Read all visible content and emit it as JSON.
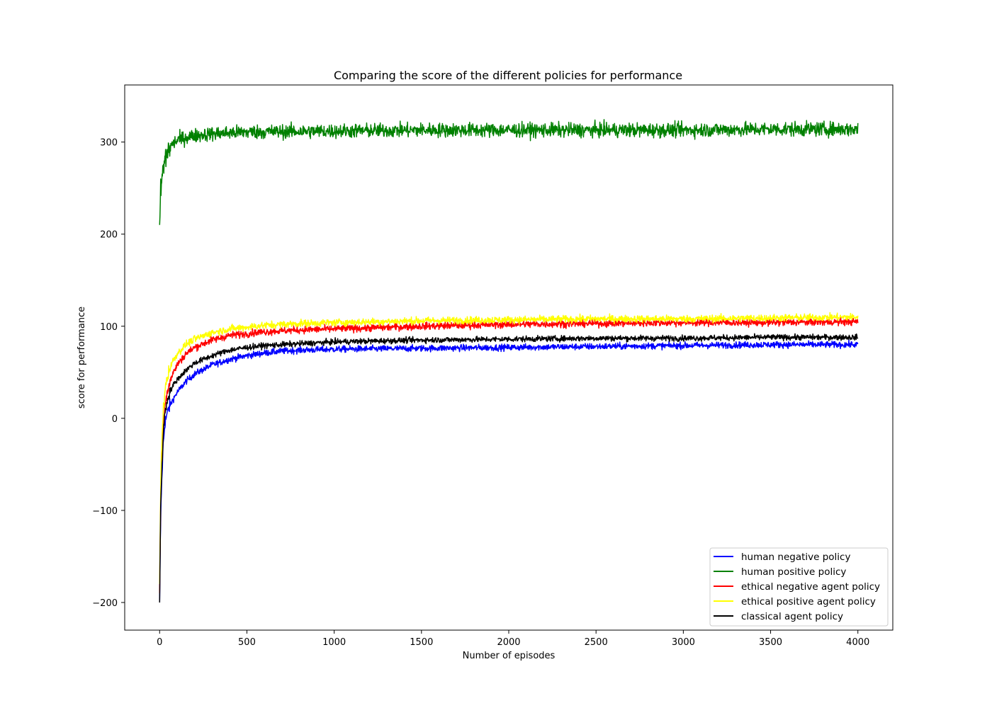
{
  "chart_data": {
    "type": "line",
    "title": "Comparing the score of the different policies for performance",
    "xlabel": "Number of episodes",
    "ylabel": "score for performance",
    "xlim": [
      -200,
      4200
    ],
    "ylim": [
      -230,
      362
    ],
    "x_ticks": [
      0,
      500,
      1000,
      1500,
      2000,
      2500,
      3000,
      3500,
      4000
    ],
    "y_ticks": [
      -200,
      -100,
      0,
      100,
      200,
      300
    ],
    "x_tick_labels": [
      "0",
      "500",
      "1000",
      "1500",
      "2000",
      "2500",
      "3000",
      "3500",
      "4000"
    ],
    "y_tick_labels": [
      "−200",
      "−100",
      "0",
      "100",
      "200",
      "300"
    ],
    "grid": false,
    "legend_position": "lower-right",
    "x_max": 4000,
    "series": [
      {
        "name": "human negative policy",
        "color": "#0000ff",
        "x": [
          0,
          5,
          10,
          20,
          30,
          50,
          75,
          100,
          150,
          200,
          300,
          400,
          500,
          600,
          700,
          800,
          1000,
          1500,
          2000,
          2500,
          3000,
          3500,
          4000
        ],
        "y": [
          -200,
          -120,
          -80,
          -30,
          -5,
          10,
          20,
          28,
          40,
          48,
          58,
          64,
          68,
          71,
          73,
          74,
          75,
          76,
          77,
          78,
          79,
          80,
          80
        ],
        "noise": 2.5
      },
      {
        "name": "human positive policy",
        "color": "#008000",
        "x": [
          0,
          5,
          10,
          20,
          30,
          50,
          75,
          100,
          150,
          200,
          300,
          400,
          500,
          1000,
          1500,
          2000,
          2500,
          3000,
          3500,
          4000
        ],
        "y": [
          210,
          240,
          255,
          270,
          280,
          292,
          298,
          302,
          305,
          307,
          309,
          310,
          311,
          312,
          313,
          313,
          313,
          313,
          314,
          314
        ],
        "noise": 5.5
      },
      {
        "name": "ethical negative agent policy",
        "color": "#ff0000",
        "x": [
          0,
          5,
          10,
          20,
          30,
          50,
          75,
          100,
          150,
          200,
          300,
          400,
          500,
          600,
          800,
          1000,
          1500,
          2000,
          2500,
          3000,
          3500,
          4000
        ],
        "y": [
          -190,
          -100,
          -60,
          -10,
          15,
          35,
          48,
          58,
          70,
          77,
          85,
          90,
          92,
          94,
          96,
          97,
          100,
          102,
          103,
          104,
          104,
          105
        ],
        "noise": 2.8
      },
      {
        "name": "ethical positive agent policy",
        "color": "#ffff00",
        "x": [
          0,
          5,
          10,
          20,
          30,
          50,
          75,
          100,
          150,
          200,
          300,
          400,
          500,
          600,
          800,
          1000,
          1500,
          2000,
          2500,
          3000,
          3500,
          4000
        ],
        "y": [
          -180,
          -90,
          -40,
          5,
          30,
          50,
          62,
          70,
          80,
          86,
          93,
          97,
          99,
          101,
          103,
          104,
          106,
          107,
          108,
          108,
          109,
          110
        ],
        "noise": 2.8
      },
      {
        "name": "classical agent policy",
        "color": "#000000",
        "x": [
          0,
          5,
          10,
          20,
          30,
          50,
          75,
          100,
          150,
          200,
          300,
          400,
          500,
          600,
          800,
          1000,
          1500,
          2000,
          2500,
          3000,
          3500,
          4000
        ],
        "y": [
          -200,
          -110,
          -70,
          -20,
          5,
          25,
          35,
          42,
          52,
          60,
          68,
          74,
          77,
          79,
          81,
          83,
          85,
          86,
          87,
          87,
          88,
          88
        ],
        "noise": 2.2
      }
    ]
  }
}
